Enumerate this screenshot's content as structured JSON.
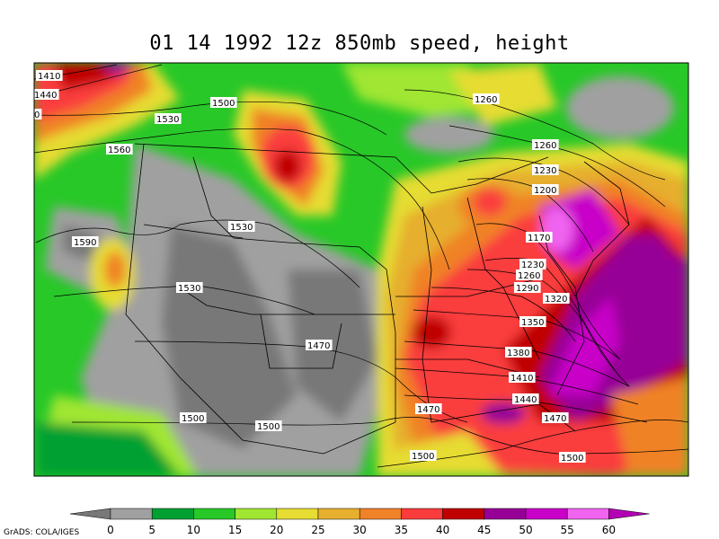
{
  "title": "01 14 1992 12z 850mb speed, height",
  "credit": "GrADS: COLA/IGES",
  "colorbar": {
    "ticks": [
      "0",
      "5",
      "10",
      "15",
      "20",
      "25",
      "30",
      "35",
      "40",
      "45",
      "50",
      "55",
      "60"
    ],
    "colors": [
      "#787878",
      "#a0a0a0",
      "#00a032",
      "#28c828",
      "#a0e632",
      "#e6dc32",
      "#e6af2d",
      "#f08228",
      "#fa3c3c",
      "#c00000",
      "#960096",
      "#c800c8",
      "#f064f0",
      "#b400b4"
    ]
  },
  "height_labels": [
    "1410",
    "1440",
    "1530",
    "1500",
    "1560",
    "1590",
    "1530",
    "1530",
    "1470",
    "1500",
    "1500",
    "1260",
    "1260",
    "1230",
    "1200",
    "1170",
    "1230",
    "1260",
    "1290",
    "1320",
    "1350",
    "1380",
    "1410",
    "1440",
    "1470",
    "1470",
    "1500",
    "1500",
    "0"
  ]
}
